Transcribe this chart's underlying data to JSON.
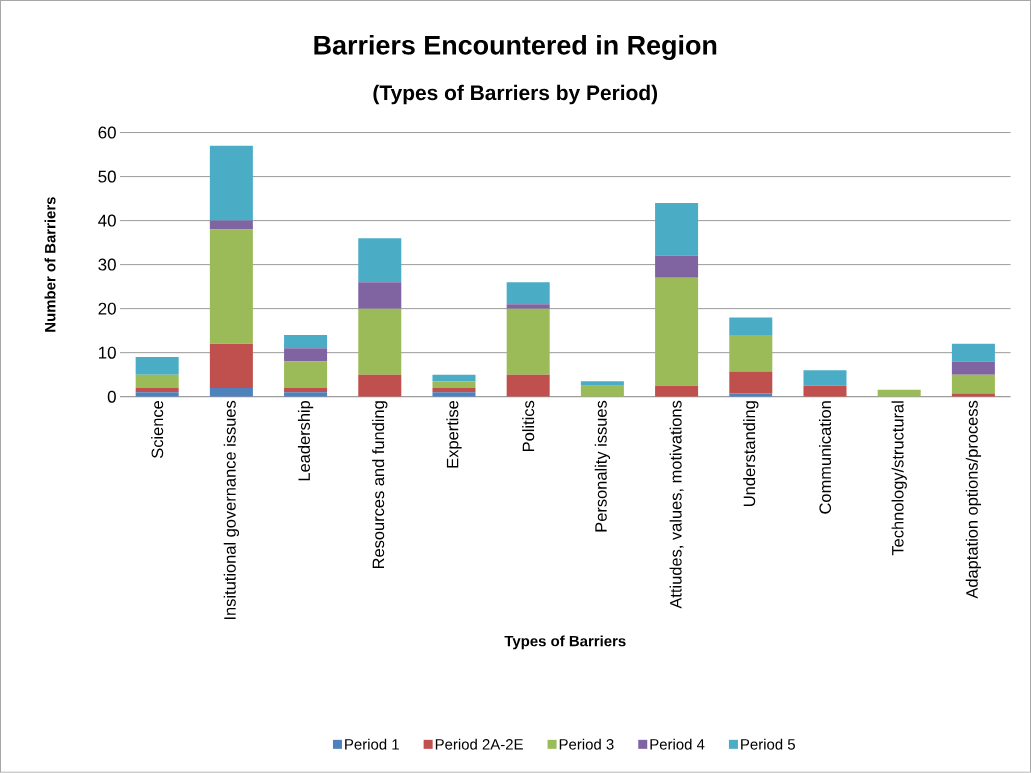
{
  "chart_data": {
    "type": "bar",
    "stacked": true,
    "title": "Barriers Encountered in Region",
    "subtitle": "(Types of Barriers by Period)",
    "xlabel": "Types of Barriers",
    "ylabel": "Number of Barriers",
    "categories": [
      "Science",
      "Insitutional governance issues",
      "Leadership",
      "Resources and funding",
      "Expertise",
      "Politics",
      "Personality issues",
      "Attiudes, values, motivations",
      "Understanding",
      "Communication",
      "Technology/structural",
      "Adaptation options/process"
    ],
    "series": [
      {
        "name": "Period 1",
        "color": "#4f81bd",
        "values": [
          1,
          2,
          1,
          0,
          1,
          0,
          0,
          0,
          0.7,
          0,
          0,
          0
        ]
      },
      {
        "name": "Period 2A-2E",
        "color": "#c0504d",
        "values": [
          1,
          10,
          1,
          5,
          1,
          5,
          0,
          2.5,
          5,
          2.5,
          0,
          0.7
        ]
      },
      {
        "name": "Period 3",
        "color": "#9bbb59",
        "values": [
          3,
          26,
          6,
          15,
          1.5,
          15,
          2.5,
          24.5,
          8.3,
          0,
          1.6,
          4.3
        ]
      },
      {
        "name": "Period 4",
        "color": "#8064a2",
        "values": [
          0,
          2,
          3,
          6,
          0,
          1,
          0,
          5,
          0,
          0,
          0,
          3
        ]
      },
      {
        "name": "Period 5",
        "color": "#4bacc6",
        "values": [
          4,
          17,
          3,
          10,
          1.5,
          5,
          1,
          12,
          4,
          3.5,
          0,
          4
        ]
      }
    ],
    "ylim": [
      0,
      60
    ],
    "yticks": [
      0,
      10,
      20,
      30,
      40,
      50,
      60
    ],
    "grid": "y",
    "legend": "bottom"
  }
}
